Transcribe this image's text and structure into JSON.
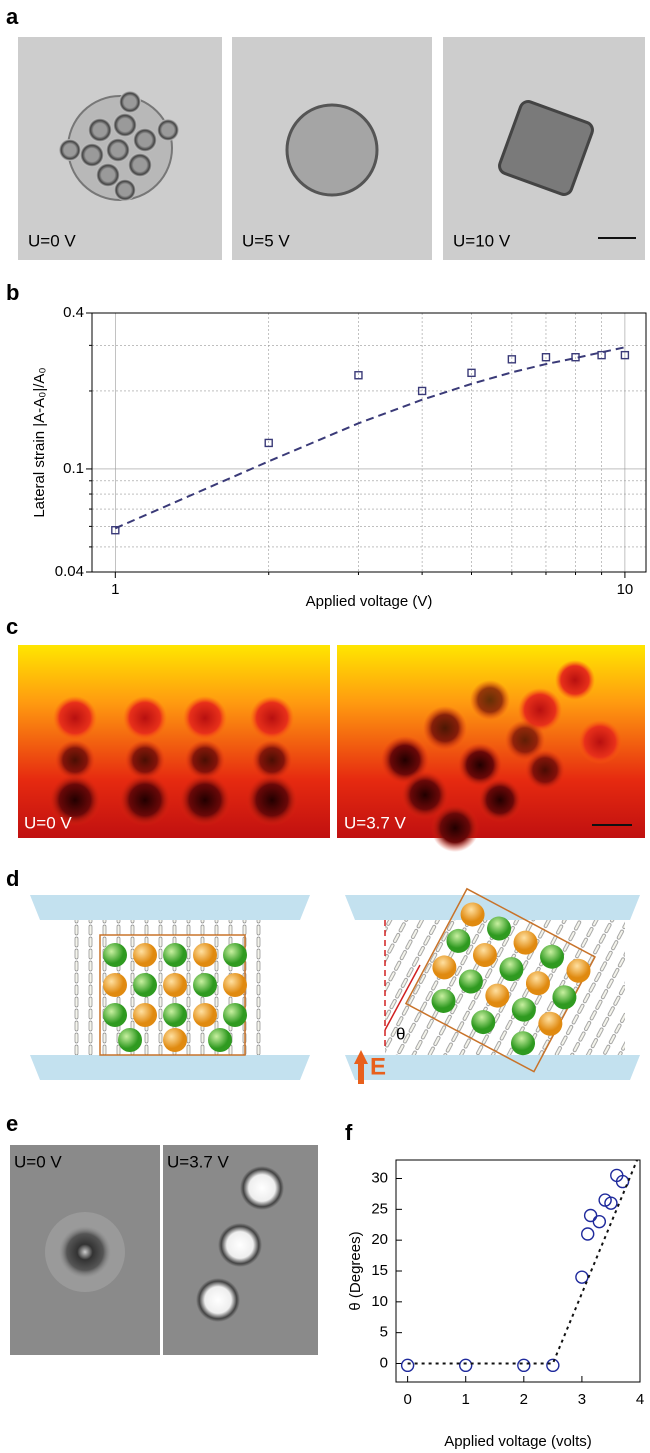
{
  "figure": {
    "labels": [
      "a",
      "b",
      "c",
      "d",
      "e",
      "f"
    ],
    "a_captions": [
      "U=0 V",
      "U=5 V",
      "U=10 V"
    ],
    "c_captions": [
      "U=0 V",
      "U=3.7 V"
    ],
    "d_annotations": [
      "θ",
      "E"
    ],
    "e_captions": [
      "U=0 V",
      "U=3.7 V"
    ]
  },
  "chart_data": [
    {
      "type": "scatter",
      "xlabel": "Applied voltage (V)",
      "ylabel": "Lateral strain |A-A₀|/A₀",
      "xscale": "log",
      "yscale": "log",
      "grid": true,
      "xlim": [
        0.9,
        11
      ],
      "ylim": [
        0.04,
        0.4
      ],
      "xticks": [
        1,
        10
      ],
      "xminor": [
        2,
        3,
        4,
        5,
        6,
        7,
        8,
        9
      ],
      "yticks": [
        0.04,
        0.1,
        0.4
      ],
      "yminor": [
        0.05,
        0.06,
        0.07,
        0.08,
        0.09,
        0.2,
        0.3
      ],
      "x": [
        1,
        2,
        3,
        4,
        5,
        6,
        7,
        8,
        9,
        10
      ],
      "series": [
        {
          "marker": "square",
          "color": "#3a3a78",
          "values": [
            0.058,
            0.126,
            0.23,
            0.2,
            0.235,
            0.265,
            0.27,
            0.27,
            0.275,
            0.275
          ]
        },
        {
          "marker": "dashed-line",
          "color": "#3a3a78",
          "values": [
            0.059,
            0.107,
            0.15,
            0.185,
            0.213,
            0.236,
            0.254,
            0.268,
            0.282,
            0.295
          ]
        }
      ]
    },
    {
      "type": "scatter",
      "xlabel": "Applied voltage (volts)",
      "ylabel": "θ (Degrees)",
      "grid": false,
      "xlim": [
        -0.2,
        4
      ],
      "ylim": [
        -3,
        33
      ],
      "xticks": [
        0,
        1,
        2,
        3,
        4
      ],
      "yticks": [
        0,
        5,
        10,
        15,
        20,
        25,
        30
      ],
      "series": [
        {
          "marker": "circle",
          "color": "#1f2a9c",
          "x": [
            0,
            1,
            2,
            2.5,
            3,
            3.1,
            3.15,
            3.3,
            3.4,
            3.5,
            3.6,
            3.7
          ],
          "values": [
            -0.3,
            -0.3,
            -0.3,
            -0.3,
            14,
            21,
            24,
            23,
            26.5,
            26,
            30.5,
            29.5
          ]
        },
        {
          "marker": "dotted-line",
          "color": "#111111",
          "x": [
            0,
            2.5,
            3.95
          ],
          "values": [
            0,
            0,
            33
          ]
        }
      ]
    }
  ]
}
